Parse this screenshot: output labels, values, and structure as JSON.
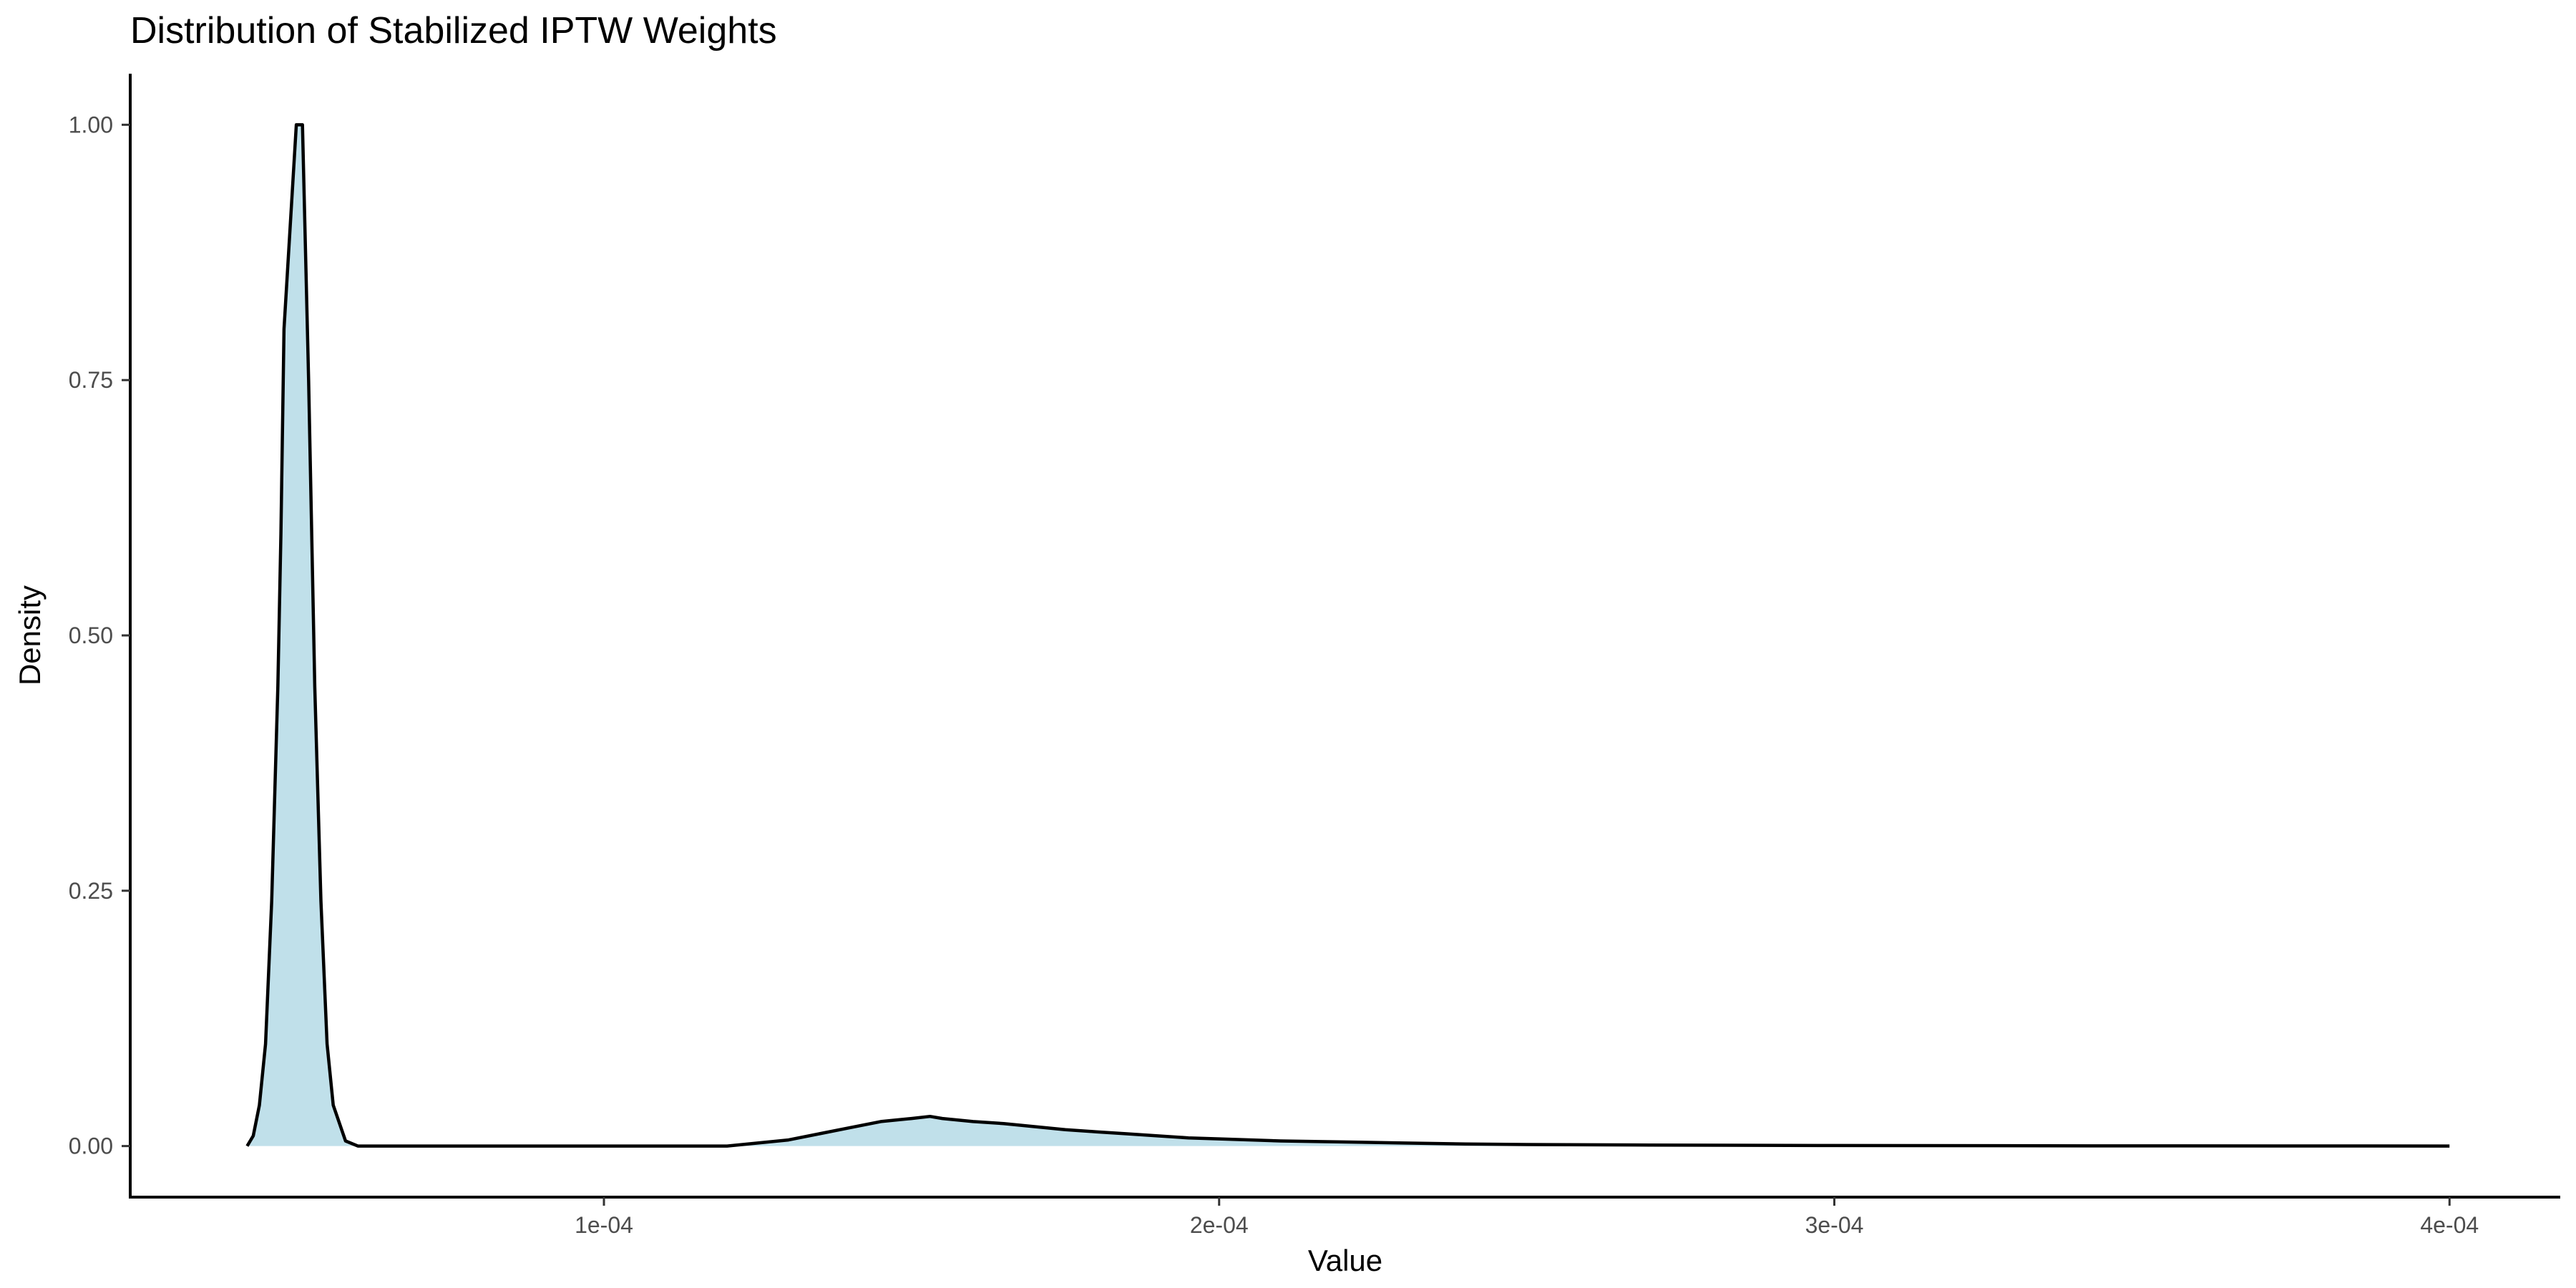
{
  "chart_data": {
    "type": "area",
    "title": "Distribution of Stabilized IPTW Weights",
    "xlabel": "Value",
    "ylabel": "Density",
    "xlim": [
      2.3e-05,
      0.000418
    ],
    "ylim": [
      -0.05,
      1.05
    ],
    "x_ticks": [
      0.0001,
      0.0002,
      0.0003,
      0.0004
    ],
    "x_tick_labels": [
      "1e-04",
      "2e-04",
      "3e-04",
      "4e-04"
    ],
    "y_ticks": [
      0,
      0.25,
      0.5,
      0.75,
      1
    ],
    "y_tick_labels": [
      "0.00",
      "0.25",
      "0.50",
      "0.75",
      "1.00"
    ],
    "fill_color": "#c0e0ea",
    "line_color": "#000000",
    "grid": false,
    "legend": "none",
    "series": [
      {
        "x": [
          4.2e-05,
          4.3e-05,
          4.4e-05,
          4.5e-05,
          4.6e-05,
          4.7e-05,
          4.75e-05,
          4.8e-05,
          5e-05,
          5.1e-05,
          5.2e-05,
          5.3e-05,
          5.4e-05,
          5.5e-05,
          5.6e-05,
          5.8e-05,
          6e-05,
          8e-05,
          0.0001,
          0.00012,
          0.00013,
          0.000135,
          0.00014,
          0.000145,
          0.00015,
          0.000153,
          0.000155,
          0.00016,
          0.000165,
          0.00017,
          0.000175,
          0.00018,
          0.000185,
          0.00019,
          0.000195,
          0.0002,
          0.00021,
          0.00022,
          0.00023,
          0.00024,
          0.00025,
          0.00027,
          0.0003,
          0.00035,
          0.0004
        ],
        "y": [
          0.0,
          0.01,
          0.04,
          0.1,
          0.24,
          0.45,
          0.6,
          0.8,
          1.0,
          1.0,
          0.75,
          0.45,
          0.24,
          0.1,
          0.04,
          0.005,
          0.0,
          0.0,
          0.0,
          0.0,
          0.006,
          0.012,
          0.018,
          0.024,
          0.027,
          0.029,
          0.027,
          0.024,
          0.022,
          0.019,
          0.016,
          0.014,
          0.012,
          0.01,
          0.008,
          0.007,
          0.005,
          0.004,
          0.003,
          0.002,
          0.0015,
          0.001,
          0.0005,
          0.0002,
          0.0
        ]
      }
    ]
  }
}
